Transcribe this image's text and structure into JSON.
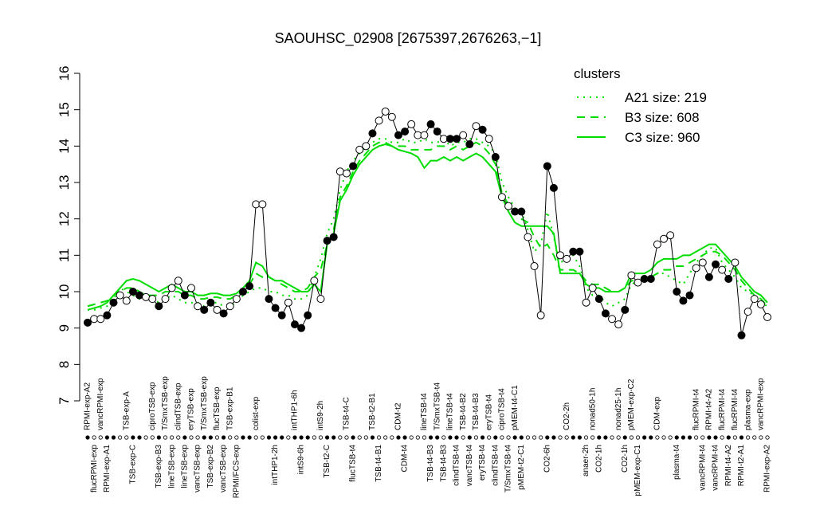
{
  "chart_data": {
    "type": "line",
    "title": "SAOUHSC_02908 [2675397,2676263,−1]",
    "ylim": [
      7,
      16
    ],
    "yticks": [
      7,
      8,
      9,
      10,
      11,
      12,
      13,
      14,
      15,
      16
    ],
    "legend_title": "clusters",
    "legend_position": "top-right",
    "legend_color": "#00dd00",
    "line_color": "#000000",
    "categories": [
      "RPMI-exp-A2",
      "flucRPMI-exp",
      "vancRPMI-exp",
      "RPMI-exp-A1",
      null,
      null,
      "TSB-exp-A",
      "TSB-exp-C",
      null,
      null,
      "ciproTSB-exp",
      "TSB-exp-B3",
      "T/SmxTSB-exp",
      "lineTSB-exp",
      "clindTSB-exp",
      "lineTSB-exp",
      "eryTSB-exp",
      "vancTSB-exp",
      "T/SmxTSB-exp",
      "TSB-exp-B2",
      "flucTSB-exp",
      "vancTSB-exp",
      "TSB-exp-B1",
      "RPMI/FCS-exp",
      null,
      null,
      "colist-exp",
      null,
      null,
      "intTHP1-2h",
      null,
      null,
      "intTHP1-6h",
      "intS9-6h",
      null,
      null,
      "intS9-2h",
      "TSB-t2-C",
      null,
      null,
      "TSB-t4-C",
      "flucTSB-t4",
      null,
      null,
      "TSB-t2-B1",
      "TSB-t4-B1",
      null,
      null,
      "CDM-t2",
      "CDM-t4",
      null,
      null,
      "lineTSB-t4",
      "TSB-t4-B3",
      "T/SmxTSB-t4",
      "TSB-t4-B3",
      "lineTSB-t4",
      "clindTSB-t4",
      "TSB-t4-B2",
      "vancTSB-t4",
      "TSB-t4-B3",
      "eryTSB-t4",
      "eryTSB-t4",
      "clindTSB-t4",
      "ciproTSB-t4",
      "T/SmxTSB-t4",
      "pMEM-t4-C1",
      "pMEM-t2-C1",
      null,
      null,
      null,
      "CO2-6h",
      null,
      null,
      "CO2-2h",
      null,
      null,
      "anaer-2h",
      "nonad50-1h",
      "CO2-1h",
      null,
      null,
      "nonad25-1h",
      "CO2-1h",
      "pMEM-exp-C2",
      "pMEM-exp-C1",
      null,
      null,
      "CDM-exp",
      null,
      null,
      "plasma-t4",
      null,
      null,
      "flucRPMI-t4",
      "vancRPMI-t4",
      "RPMI-t4-A2",
      "vancRPMI-t4",
      "flucRPMI-t4",
      "RPMI-t4-A2",
      "flucRPMI-t4",
      "RPMI-t2-A1",
      "plasma-exp",
      null,
      "vancRPMI-exp",
      "RPMI-exp-A2"
    ],
    "values": [
      9.15,
      9.25,
      9.25,
      9.35,
      9.7,
      9.9,
      9.75,
      10.0,
      9.9,
      9.85,
      9.8,
      9.6,
      9.8,
      10.1,
      10.3,
      9.9,
      10.1,
      9.6,
      9.5,
      9.7,
      9.5,
      9.4,
      9.6,
      9.8,
      10.0,
      10.15,
      12.4,
      12.4,
      9.8,
      9.55,
      9.35,
      9.7,
      9.1,
      9.0,
      9.35,
      10.3,
      9.8,
      11.4,
      11.5,
      13.3,
      13.25,
      13.45,
      13.9,
      14.0,
      14.35,
      14.7,
      14.95,
      14.8,
      14.3,
      14.4,
      14.6,
      14.3,
      14.3,
      14.6,
      14.4,
      14.2,
      14.2,
      14.2,
      14.3,
      14.05,
      14.55,
      14.45,
      14.2,
      13.7,
      12.6,
      12.35,
      12.2,
      12.2,
      11.5,
      10.7,
      9.35,
      13.45,
      12.85,
      11.0,
      10.9,
      11.1,
      11.1,
      9.7,
      10.1,
      9.8,
      9.4,
      9.25,
      9.1,
      9.5,
      10.45,
      10.25,
      10.35,
      10.35,
      11.3,
      11.45,
      11.55,
      10.0,
      9.75,
      9.9,
      10.65,
      10.8,
      10.4,
      10.75,
      10.6,
      10.35,
      10.8,
      8.8,
      9.45,
      9.8,
      9.65,
      9.3
    ],
    "point_fill": [
      "#000000",
      "#ffffff",
      "#ffffff",
      "#000000",
      "#000000",
      "#ffffff",
      "#ffffff",
      "#000000",
      "#000000",
      "#ffffff",
      "#ffffff",
      "#000000",
      "#ffffff",
      "#ffffff",
      "#ffffff",
      "#000000",
      "#ffffff",
      "#ffffff",
      "#000000",
      "#000000",
      "#ffffff",
      "#000000",
      "#ffffff",
      "#ffffff",
      "#000000",
      "#000000",
      "#ffffff",
      "#ffffff",
      "#000000",
      "#000000",
      "#000000",
      "#ffffff",
      "#000000",
      "#000000",
      "#000000",
      "#ffffff",
      "#ffffff",
      "#000000",
      "#000000",
      "#ffffff",
      "#ffffff",
      "#000000",
      "#ffffff",
      "#ffffff",
      "#000000",
      "#ffffff",
      "#ffffff",
      "#ffffff",
      "#000000",
      "#000000",
      "#ffffff",
      "#ffffff",
      "#ffffff",
      "#000000",
      "#000000",
      "#ffffff",
      "#000000",
      "#000000",
      "#ffffff",
      "#000000",
      "#ffffff",
      "#000000",
      "#ffffff",
      "#000000",
      "#ffffff",
      "#ffffff",
      "#000000",
      "#000000",
      "#ffffff",
      "#ffffff",
      "#ffffff",
      "#000000",
      "#000000",
      "#ffffff",
      "#ffffff",
      "#000000",
      "#000000",
      "#ffffff",
      "#ffffff",
      "#000000",
      "#000000",
      "#ffffff",
      "#ffffff",
      "#000000",
      "#ffffff",
      "#ffffff",
      "#000000",
      "#000000",
      "#ffffff",
      "#ffffff",
      "#ffffff",
      "#000000",
      "#000000",
      "#000000",
      "#ffffff",
      "#ffffff",
      "#000000",
      "#000000",
      "#ffffff",
      "#000000",
      "#ffffff",
      "#000000",
      "#ffffff",
      "#ffffff",
      "#ffffff",
      "#ffffff"
    ],
    "series": [
      {
        "name": "A21 size: 219",
        "color": "#00dd00",
        "dash": "dotted",
        "values": [
          9.5,
          9.5,
          9.55,
          9.6,
          9.8,
          10.1,
          10.0,
          9.9,
          9.8,
          9.8,
          9.8,
          9.7,
          9.8,
          9.9,
          9.8,
          9.7,
          9.7,
          9.7,
          9.6,
          9.7,
          9.7,
          9.6,
          9.6,
          9.7,
          9.9,
          10.0,
          10.1,
          10.1,
          10.0,
          10.0,
          9.9,
          9.9,
          9.8,
          9.8,
          9.9,
          10.4,
          10.9,
          11.6,
          12.0,
          12.8,
          13.3,
          13.6,
          13.8,
          14.0,
          14.1,
          14.2,
          14.2,
          14.1,
          14.1,
          14.2,
          14.1,
          14.1,
          14.2,
          14.1,
          14.1,
          14.2,
          14.0,
          14.1,
          14.1,
          14.2,
          14.2,
          14.1,
          14.0,
          13.8,
          13.0,
          12.6,
          12.3,
          12.2,
          11.7,
          11.1,
          11.3,
          12.2,
          11.5,
          10.8,
          10.9,
          11.0,
          10.7,
          10.1,
          9.9,
          9.9,
          9.7,
          9.6,
          9.7,
          9.8,
          10.2,
          10.3,
          10.3,
          10.4,
          10.5,
          10.5,
          10.4,
          10.3,
          10.2,
          10.5,
          10.8,
          11.0,
          11.2,
          11.2,
          10.8,
          10.6,
          10.4,
          10.1,
          10.0,
          9.9,
          9.7,
          9.6
        ]
      },
      {
        "name": "B3 size: 608",
        "color": "#00dd00",
        "dash": "dashed",
        "values": [
          9.6,
          9.65,
          9.7,
          9.75,
          9.9,
          10.0,
          10.1,
          10.1,
          10.0,
          9.9,
          9.9,
          9.9,
          10.0,
          10.0,
          10.0,
          9.9,
          9.9,
          9.8,
          9.8,
          9.85,
          9.85,
          9.8,
          9.8,
          9.9,
          10.0,
          10.2,
          10.5,
          10.4,
          10.4,
          10.3,
          10.2,
          10.1,
          10.0,
          10.0,
          10.1,
          10.4,
          10.6,
          11.3,
          11.7,
          12.6,
          12.9,
          13.3,
          13.6,
          13.8,
          14.0,
          14.1,
          14.1,
          14.0,
          14.0,
          14.0,
          13.9,
          13.9,
          13.9,
          13.9,
          14.0,
          14.0,
          13.9,
          14.0,
          13.9,
          14.0,
          14.1,
          14.0,
          13.8,
          13.5,
          12.7,
          12.4,
          12.2,
          12.0,
          11.9,
          11.5,
          11.2,
          11.3,
          11.0,
          10.6,
          10.6,
          10.6,
          10.5,
          10.3,
          10.2,
          10.2,
          10.1,
          10.0,
          10.0,
          10.1,
          10.3,
          10.3,
          10.3,
          10.4,
          10.5,
          10.6,
          10.6,
          10.7,
          10.7,
          10.8,
          10.9,
          11.0,
          11.1,
          11.1,
          11.0,
          10.8,
          10.6,
          10.3,
          10.1,
          9.9,
          9.8,
          9.6
        ]
      },
      {
        "name": "C3 size: 960",
        "color": "#00dd00",
        "dash": "solid",
        "values": [
          9.5,
          9.55,
          9.6,
          9.7,
          9.9,
          10.1,
          10.3,
          10.35,
          10.3,
          10.2,
          10.1,
          10.0,
          10.1,
          10.2,
          10.1,
          10.0,
          10.0,
          9.9,
          9.9,
          9.95,
          9.95,
          9.9,
          9.9,
          9.95,
          10.1,
          10.3,
          10.8,
          10.7,
          10.4,
          10.3,
          10.3,
          10.2,
          10.1,
          10.0,
          10.0,
          10.2,
          10.0,
          11.3,
          11.6,
          12.5,
          12.8,
          13.2,
          13.5,
          13.7,
          13.9,
          14.0,
          14.05,
          14.0,
          13.9,
          13.85,
          13.8,
          13.7,
          13.4,
          13.6,
          13.6,
          13.7,
          13.6,
          13.7,
          13.6,
          13.7,
          13.8,
          13.7,
          13.5,
          13.3,
          12.6,
          12.2,
          11.9,
          11.8,
          11.8,
          11.8,
          11.8,
          11.8,
          11.6,
          10.5,
          10.5,
          10.5,
          10.5,
          10.2,
          10.1,
          10.1,
          10.0,
          10.0,
          10.0,
          10.1,
          10.5,
          10.5,
          10.5,
          10.6,
          10.8,
          10.9,
          10.9,
          10.9,
          11.0,
          11.0,
          11.1,
          11.2,
          11.3,
          11.3,
          11.1,
          10.9,
          10.7,
          10.4,
          10.2,
          10.0,
          9.9,
          9.7
        ]
      }
    ]
  }
}
